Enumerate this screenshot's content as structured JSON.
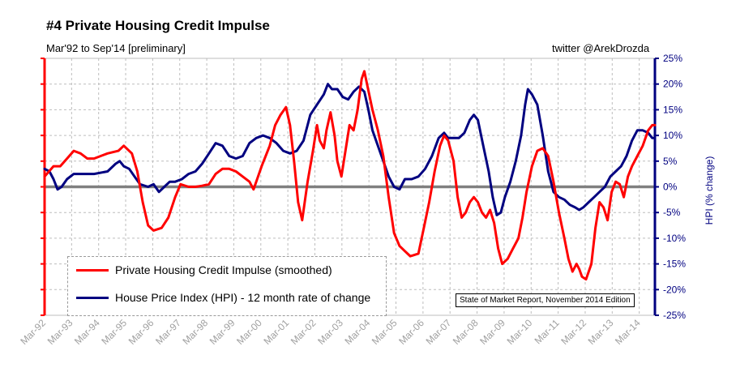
{
  "title": "#4 Private Housing Credit Impulse",
  "subtitle": "Mar'92 to Sep'14 [preliminary]",
  "credit": "twitter @ArekDrozda",
  "source_note": "State of Market Report, November 2014 Edition",
  "chart_data": {
    "type": "line",
    "x_labels": [
      "Mar-92",
      "Mar-93",
      "Mar-94",
      "Mar-95",
      "Mar-96",
      "Mar-97",
      "Mar-98",
      "Mar-99",
      "Mar-00",
      "Mar-01",
      "Mar-02",
      "Mar-03",
      "Mar-04",
      "Mar-05",
      "Mar-06",
      "Mar-07",
      "Mar-08",
      "Mar-09",
      "Mar-10",
      "Mar-11",
      "Mar-12",
      "Mar-13",
      "Mar-14"
    ],
    "x_range": [
      1992.17,
      2014.75
    ],
    "y_right": {
      "label": "HPI (% change)",
      "min": -25,
      "max": 25,
      "ticks": [
        "-25%",
        "-20%",
        "-15%",
        "-10%",
        "-5%",
        "0%",
        "5%",
        "10%",
        "15%",
        "20%",
        "25%"
      ],
      "color": "#000080"
    },
    "y_left": {
      "min": -25,
      "max": 25,
      "color": "#ff0000"
    },
    "grid": true,
    "legend_position": "bottom-left",
    "series": [
      {
        "name": "Private Housing Credit Impulse (smoothed)",
        "color": "#ff0000",
        "points": [
          [
            1992.17,
            2
          ],
          [
            1992.5,
            4
          ],
          [
            1992.75,
            4
          ],
          [
            1993.0,
            5.5
          ],
          [
            1993.25,
            7
          ],
          [
            1993.5,
            6.5
          ],
          [
            1993.75,
            5.5
          ],
          [
            1994.0,
            5.5
          ],
          [
            1994.5,
            6.5
          ],
          [
            1994.9,
            7
          ],
          [
            1995.1,
            8
          ],
          [
            1995.4,
            6.5
          ],
          [
            1995.6,
            3
          ],
          [
            1995.8,
            -3
          ],
          [
            1996.0,
            -7.5
          ],
          [
            1996.2,
            -8.5
          ],
          [
            1996.5,
            -8
          ],
          [
            1996.75,
            -6
          ],
          [
            1997.0,
            -2
          ],
          [
            1997.2,
            0.5
          ],
          [
            1997.5,
            0
          ],
          [
            1997.75,
            0
          ],
          [
            1998.0,
            0.2
          ],
          [
            1998.25,
            0.5
          ],
          [
            1998.5,
            2.5
          ],
          [
            1998.75,
            3.5
          ],
          [
            1999.0,
            3.5
          ],
          [
            1999.25,
            3
          ],
          [
            1999.5,
            2
          ],
          [
            1999.75,
            1
          ],
          [
            1999.9,
            -0.5
          ],
          [
            2000.2,
            4
          ],
          [
            2000.5,
            8
          ],
          [
            2000.7,
            12
          ],
          [
            2000.9,
            14
          ],
          [
            2001.1,
            15.5
          ],
          [
            2001.25,
            12
          ],
          [
            2001.4,
            5
          ],
          [
            2001.55,
            -3
          ],
          [
            2001.7,
            -6.5
          ],
          [
            2001.9,
            1
          ],
          [
            2002.1,
            7
          ],
          [
            2002.25,
            12
          ],
          [
            2002.35,
            9
          ],
          [
            2002.5,
            7.5
          ],
          [
            2002.6,
            11
          ],
          [
            2002.75,
            14.5
          ],
          [
            2002.9,
            10
          ],
          [
            2003.0,
            5
          ],
          [
            2003.15,
            2
          ],
          [
            2003.3,
            7
          ],
          [
            2003.45,
            12
          ],
          [
            2003.6,
            11
          ],
          [
            2003.75,
            15
          ],
          [
            2003.9,
            21
          ],
          [
            2004.0,
            22.5
          ],
          [
            2004.1,
            20
          ],
          [
            2004.3,
            15
          ],
          [
            2004.5,
            11
          ],
          [
            2004.7,
            6
          ],
          [
            2004.9,
            -2
          ],
          [
            2005.1,
            -9
          ],
          [
            2005.3,
            -11.5
          ],
          [
            2005.5,
            -12.5
          ],
          [
            2005.7,
            -13.5
          ],
          [
            2006.0,
            -13
          ],
          [
            2006.2,
            -8
          ],
          [
            2006.4,
            -3
          ],
          [
            2006.6,
            3
          ],
          [
            2006.8,
            8
          ],
          [
            2006.95,
            10
          ],
          [
            2007.1,
            9
          ],
          [
            2007.3,
            5
          ],
          [
            2007.45,
            -2
          ],
          [
            2007.6,
            -6
          ],
          [
            2007.75,
            -5
          ],
          [
            2007.9,
            -3
          ],
          [
            2008.05,
            -2
          ],
          [
            2008.2,
            -3
          ],
          [
            2008.35,
            -5
          ],
          [
            2008.5,
            -6
          ],
          [
            2008.65,
            -4.5
          ],
          [
            2008.8,
            -7
          ],
          [
            2008.95,
            -12
          ],
          [
            2009.1,
            -15
          ],
          [
            2009.3,
            -14
          ],
          [
            2009.5,
            -12
          ],
          [
            2009.7,
            -10
          ],
          [
            2009.85,
            -6
          ],
          [
            2010.0,
            -1
          ],
          [
            2010.2,
            4
          ],
          [
            2010.4,
            7
          ],
          [
            2010.6,
            7.5
          ],
          [
            2010.8,
            6
          ],
          [
            2011.0,
            1
          ],
          [
            2011.2,
            -5
          ],
          [
            2011.4,
            -10
          ],
          [
            2011.55,
            -14
          ],
          [
            2011.7,
            -16.5
          ],
          [
            2011.85,
            -15
          ],
          [
            2011.95,
            -16
          ],
          [
            2012.05,
            -17.5
          ],
          [
            2012.2,
            -18
          ],
          [
            2012.4,
            -15
          ],
          [
            2012.55,
            -8
          ],
          [
            2012.7,
            -3
          ],
          [
            2012.85,
            -4
          ],
          [
            2013.0,
            -6.5
          ],
          [
            2013.15,
            -1
          ],
          [
            2013.3,
            1
          ],
          [
            2013.45,
            0.5
          ],
          [
            2013.6,
            -2
          ],
          [
            2013.75,
            2
          ],
          [
            2013.9,
            4
          ],
          [
            2014.1,
            6
          ],
          [
            2014.3,
            8
          ],
          [
            2014.5,
            11
          ],
          [
            2014.65,
            12
          ],
          [
            2014.75,
            12
          ]
        ]
      },
      {
        "name": "House Price Index (HPI) - 12 month rate of change",
        "color": "#000080",
        "points": [
          [
            1992.17,
            3.5
          ],
          [
            1992.35,
            3
          ],
          [
            1992.5,
            1.5
          ],
          [
            1992.65,
            -0.5
          ],
          [
            1992.8,
            0
          ],
          [
            1993.0,
            1.5
          ],
          [
            1993.25,
            2.5
          ],
          [
            1993.5,
            2.5
          ],
          [
            1994.0,
            2.5
          ],
          [
            1994.5,
            3
          ],
          [
            1994.8,
            4.5
          ],
          [
            1994.95,
            5
          ],
          [
            1995.1,
            4
          ],
          [
            1995.3,
            3.5
          ],
          [
            1995.5,
            2
          ],
          [
            1995.7,
            0.5
          ],
          [
            1996.0,
            0
          ],
          [
            1996.2,
            0.5
          ],
          [
            1996.4,
            -1
          ],
          [
            1996.6,
            0
          ],
          [
            1996.8,
            1
          ],
          [
            1997.0,
            1
          ],
          [
            1997.25,
            1.5
          ],
          [
            1997.5,
            2.5
          ],
          [
            1997.75,
            3
          ],
          [
            1998.0,
            4.5
          ],
          [
            1998.25,
            6.5
          ],
          [
            1998.5,
            8.5
          ],
          [
            1998.75,
            8
          ],
          [
            1999.0,
            6
          ],
          [
            1999.25,
            5.5
          ],
          [
            1999.5,
            6
          ],
          [
            1999.75,
            8.5
          ],
          [
            2000.0,
            9.5
          ],
          [
            2000.25,
            10
          ],
          [
            2000.5,
            9.5
          ],
          [
            2000.75,
            8.5
          ],
          [
            2001.0,
            7
          ],
          [
            2001.25,
            6.5
          ],
          [
            2001.5,
            7
          ],
          [
            2001.75,
            9
          ],
          [
            2002.0,
            14
          ],
          [
            2002.25,
            16
          ],
          [
            2002.5,
            18
          ],
          [
            2002.65,
            20
          ],
          [
            2002.8,
            19
          ],
          [
            2003.0,
            19
          ],
          [
            2003.2,
            17.5
          ],
          [
            2003.4,
            17
          ],
          [
            2003.6,
            18.5
          ],
          [
            2003.8,
            19.5
          ],
          [
            2004.0,
            18.5
          ],
          [
            2004.15,
            15
          ],
          [
            2004.3,
            11
          ],
          [
            2004.5,
            8
          ],
          [
            2004.7,
            5
          ],
          [
            2004.9,
            2
          ],
          [
            2005.1,
            0
          ],
          [
            2005.3,
            -0.5
          ],
          [
            2005.5,
            1.5
          ],
          [
            2005.75,
            1.5
          ],
          [
            2006.0,
            2
          ],
          [
            2006.25,
            3.5
          ],
          [
            2006.5,
            6
          ],
          [
            2006.75,
            9.5
          ],
          [
            2006.95,
            10.5
          ],
          [
            2007.1,
            9.5
          ],
          [
            2007.3,
            9.5
          ],
          [
            2007.5,
            9.5
          ],
          [
            2007.7,
            10.5
          ],
          [
            2007.9,
            13
          ],
          [
            2008.05,
            14
          ],
          [
            2008.2,
            13
          ],
          [
            2008.4,
            8
          ],
          [
            2008.6,
            3
          ],
          [
            2008.75,
            -2
          ],
          [
            2008.9,
            -5.5
          ],
          [
            2009.05,
            -5
          ],
          [
            2009.2,
            -2
          ],
          [
            2009.4,
            1
          ],
          [
            2009.6,
            5
          ],
          [
            2009.8,
            10
          ],
          [
            2009.95,
            16
          ],
          [
            2010.05,
            19
          ],
          [
            2010.2,
            18
          ],
          [
            2010.4,
            16
          ],
          [
            2010.6,
            10
          ],
          [
            2010.8,
            3
          ],
          [
            2011.0,
            -1
          ],
          [
            2011.2,
            -2
          ],
          [
            2011.4,
            -2.5
          ],
          [
            2011.6,
            -3.5
          ],
          [
            2011.8,
            -4
          ],
          [
            2011.95,
            -4.5
          ],
          [
            2012.1,
            -4
          ],
          [
            2012.3,
            -3
          ],
          [
            2012.5,
            -2
          ],
          [
            2012.7,
            -1
          ],
          [
            2012.9,
            0
          ],
          [
            2013.1,
            2
          ],
          [
            2013.3,
            3
          ],
          [
            2013.5,
            4
          ],
          [
            2013.7,
            6
          ],
          [
            2013.9,
            9
          ],
          [
            2014.1,
            11
          ],
          [
            2014.3,
            11
          ],
          [
            2014.5,
            10.5
          ],
          [
            2014.65,
            9.5
          ],
          [
            2014.75,
            9.5
          ]
        ]
      }
    ]
  }
}
